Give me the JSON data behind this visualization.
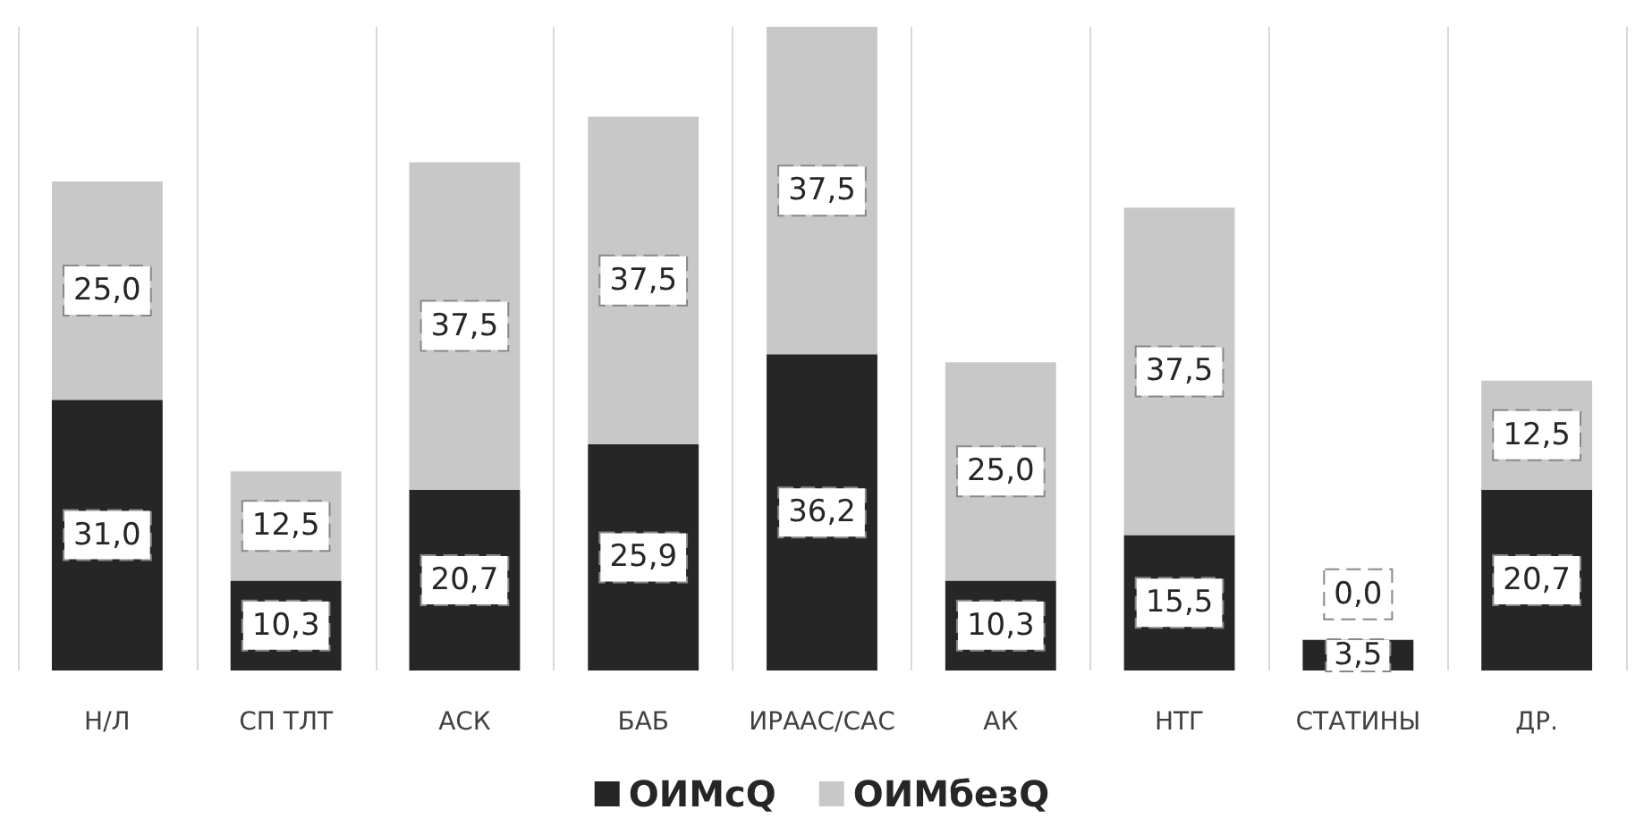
{
  "chart_data": {
    "type": "bar",
    "stacked": true,
    "grid": "x",
    "legend": "bottom",
    "categories": [
      "Н/Л",
      "СП ТЛТ",
      "АСК",
      "БАБ",
      "ИРААС/САС",
      "АК",
      "НТГ",
      "СТАТИНЫ",
      "ДР."
    ],
    "series": [
      {
        "name": "ОИМсQ",
        "color": "#262626",
        "values": [
          31.0,
          10.3,
          20.7,
          25.9,
          36.2,
          10.3,
          15.5,
          3.5,
          20.7
        ],
        "value_labels": [
          "31,0",
          "10,3",
          "20,7",
          "25,9",
          "36,2",
          "10,3",
          "15,5",
          "3,5",
          "20,7"
        ]
      },
      {
        "name": "ОИМбезQ",
        "color": "#c8c8c8",
        "values": [
          25.0,
          12.5,
          37.5,
          37.5,
          37.5,
          25.0,
          37.5,
          0.0,
          12.5
        ],
        "value_labels": [
          "25,0",
          "12,5",
          "37,5",
          "37,5",
          "37,5",
          "25,0",
          "37,5",
          "0,0",
          "12,5"
        ]
      }
    ]
  }
}
